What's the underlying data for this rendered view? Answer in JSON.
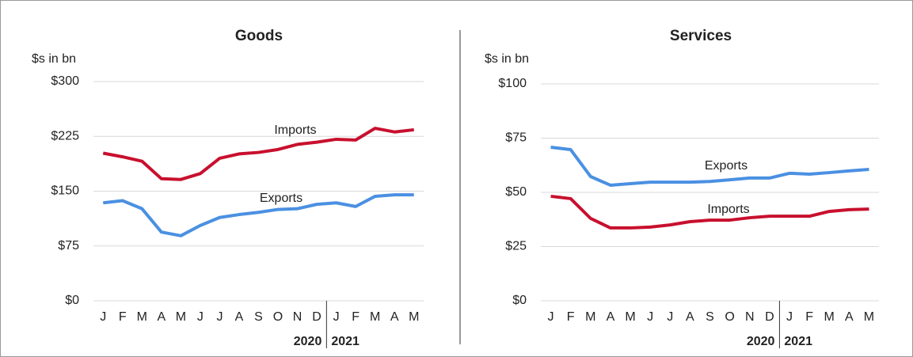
{
  "chart_data": [
    {
      "type": "line",
      "title": "Goods",
      "ylabel": "$s in bn",
      "categories": [
        "J",
        "F",
        "M",
        "A",
        "M",
        "J",
        "J",
        "A",
        "S",
        "O",
        "N",
        "D",
        "J",
        "F",
        "M",
        "A",
        "M"
      ],
      "x_groups": [
        {
          "label": "2020",
          "months": 12
        },
        {
          "label": "2021",
          "months": 5
        }
      ],
      "ylim": [
        0,
        300
      ],
      "yticks": [
        {
          "value": 0,
          "label": "$0"
        },
        {
          "value": 75,
          "label": "$75"
        },
        {
          "value": 150,
          "label": "$150"
        },
        {
          "value": 225,
          "label": "$225"
        },
        {
          "value": 300,
          "label": "$300"
        }
      ],
      "grid": true,
      "series": [
        {
          "name": "Imports",
          "color": "#c8102e",
          "values": [
            202,
            197,
            191,
            167,
            166,
            174,
            195,
            201,
            203,
            207,
            214,
            217,
            221,
            220,
            236,
            231,
            234
          ]
        },
        {
          "name": "Exports",
          "color": "#4a90e2",
          "values": [
            134,
            137,
            126,
            94,
            89,
            103,
            114,
            118,
            121,
            125,
            126,
            132,
            134,
            129,
            143,
            145,
            145
          ]
        }
      ]
    },
    {
      "type": "line",
      "title": "Services",
      "ylabel": "$s in bn",
      "categories": [
        "J",
        "F",
        "M",
        "A",
        "M",
        "J",
        "J",
        "A",
        "S",
        "O",
        "N",
        "D",
        "J",
        "F",
        "M",
        "A",
        "M"
      ],
      "x_groups": [
        {
          "label": "2020",
          "months": 12
        },
        {
          "label": "2021",
          "months": 5
        }
      ],
      "ylim": [
        0,
        100
      ],
      "yticks": [
        {
          "value": 0,
          "label": "$0"
        },
        {
          "value": 25,
          "label": "$25"
        },
        {
          "value": 50,
          "label": "$50"
        },
        {
          "value": 75,
          "label": "$75"
        },
        {
          "value": 100,
          "label": "$100"
        }
      ],
      "grid": true,
      "series": [
        {
          "name": "Exports",
          "color": "#4a90e2",
          "values": [
            70.8,
            69.7,
            57.3,
            53.3,
            54,
            54.7,
            54.7,
            54.7,
            55,
            55.8,
            56.6,
            56.6,
            58.8,
            58.4,
            59.1,
            59.9,
            60.6
          ]
        },
        {
          "name": "Imports",
          "color": "#c8102e",
          "values": [
            48.2,
            47.1,
            38,
            33.6,
            33.6,
            34,
            35,
            36.5,
            37.2,
            37.2,
            38.3,
            39,
            39,
            39,
            41.2,
            42,
            42.3
          ]
        }
      ]
    }
  ]
}
